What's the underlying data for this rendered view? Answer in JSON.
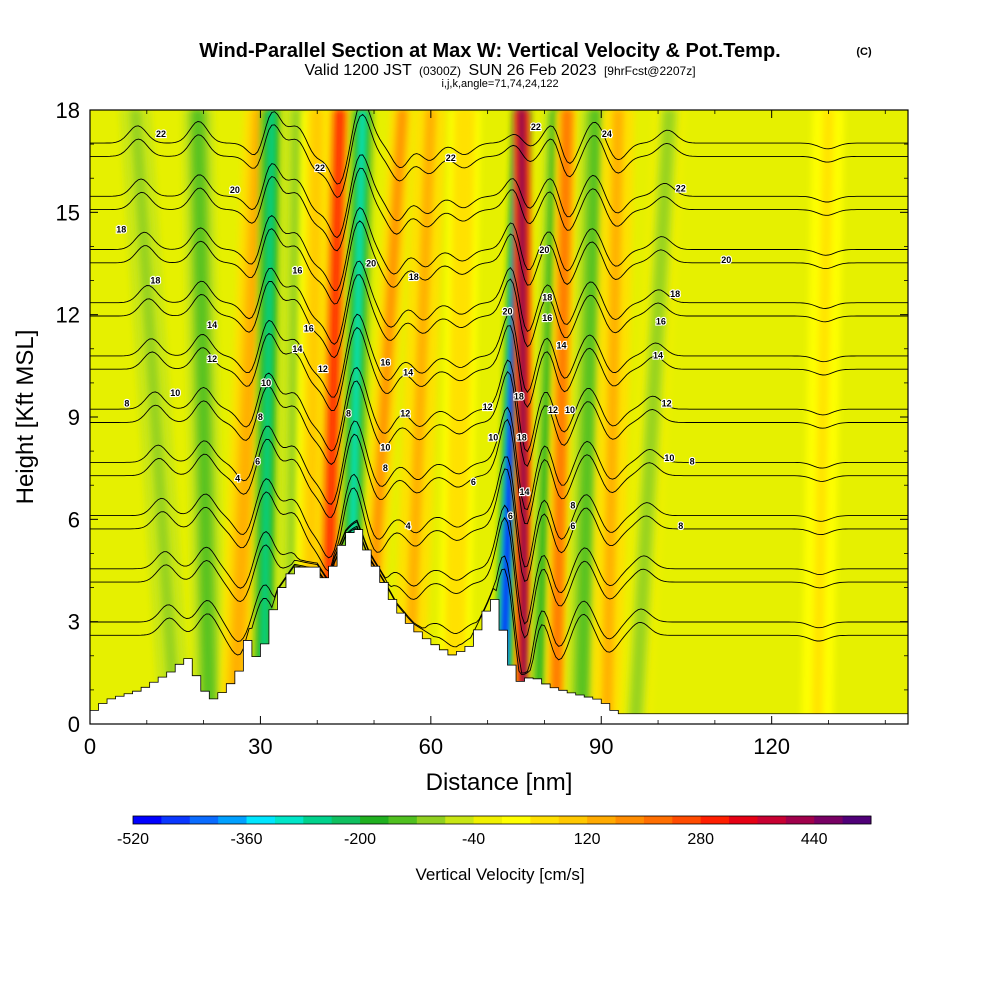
{
  "chart_data": {
    "type": "heatmap",
    "title": "Wind-Parallel Section at Max W: Vertical Velocity & Pot.Temp.",
    "title_mark": "(C)",
    "subtitle_parts": [
      "Valid 1200 JST",
      "(0300Z)",
      "SUN 26 Feb 2023",
      "[9hrFcst@2207z]"
    ],
    "subtitle2": "i,j,k,angle=71,74,24,122",
    "xlabel": "Distance [nm]",
    "ylabel": "Height [Kft MSL]",
    "xlim": [
      0,
      144
    ],
    "ylim": [
      0,
      18
    ],
    "x_ticks": [
      "0",
      "30",
      "60",
      "90",
      "120"
    ],
    "x_tick_values": [
      0,
      30,
      60,
      90,
      120
    ],
    "y_ticks": [
      "0",
      "3",
      "6",
      "9",
      "12",
      "15",
      "18"
    ],
    "y_tick_values": [
      0,
      3,
      6,
      9,
      12,
      15,
      18
    ],
    "colorbar": {
      "title": "Vertical Velocity [cm/s]",
      "min": -520,
      "max": 520,
      "labels": [
        "-520",
        "-360",
        "-200",
        "-40",
        "120",
        "280",
        "440"
      ],
      "label_values": [
        -520,
        -360,
        -200,
        -40,
        120,
        280,
        440
      ],
      "colors": [
        "#0000ff",
        "#0a37ff",
        "#0a6bff",
        "#00a0ff",
        "#00e6ff",
        "#00e6c8",
        "#00d28c",
        "#10c060",
        "#20b020",
        "#50c020",
        "#90d020",
        "#c8e614",
        "#f0f000",
        "#ffff00",
        "#ffe000",
        "#ffc800",
        "#ffaa00",
        "#ff8c00",
        "#ff6e00",
        "#ff4b00",
        "#ff1e00",
        "#e60014",
        "#c80032",
        "#a0004b",
        "#780064",
        "#500078"
      ]
    },
    "terrain": [
      [
        0,
        0.3
      ],
      [
        3,
        0.7
      ],
      [
        9,
        1.0
      ],
      [
        15,
        1.6
      ],
      [
        17,
        2.0
      ],
      [
        20,
        1.0
      ],
      [
        22,
        0.7
      ],
      [
        26,
        1.4
      ],
      [
        28,
        2.6
      ],
      [
        30,
        1.6
      ],
      [
        31,
        2.6
      ],
      [
        33,
        3.8
      ],
      [
        36,
        4.6
      ],
      [
        40,
        4.6
      ],
      [
        42,
        4.1
      ],
      [
        43,
        4.8
      ],
      [
        45,
        5.5
      ],
      [
        47,
        5.8
      ],
      [
        49,
        5.0
      ],
      [
        51,
        4.4
      ],
      [
        54,
        3.4
      ],
      [
        57,
        2.8
      ],
      [
        60,
        2.4
      ],
      [
        64,
        2.0
      ],
      [
        67,
        2.3
      ],
      [
        70,
        3.4
      ],
      [
        71,
        3.8
      ],
      [
        73,
        2.6
      ],
      [
        75,
        1.2
      ],
      [
        78,
        1.4
      ],
      [
        81,
        1.1
      ],
      [
        85,
        0.9
      ],
      [
        90,
        0.7
      ],
      [
        93,
        0.3
      ],
      [
        144,
        0.3
      ]
    ],
    "w_bands": [
      {
        "x0": 15.0,
        "x1": 8.0,
        "w": -120
      },
      {
        "x0": 21.0,
        "x1": 19.0,
        "w": -150
      },
      {
        "x0": 25.5,
        "x1": 30.0,
        "w": 140
      },
      {
        "x0": 30.5,
        "x1": 32.0,
        "w": -260
      },
      {
        "x0": 35.5,
        "x1": 36.5,
        "w": -120
      },
      {
        "x0": 38.5,
        "x1": 40.0,
        "w": 100
      },
      {
        "x0": 41.5,
        "x1": 44.0,
        "w": 290
      },
      {
        "x0": 45.5,
        "x1": 48.0,
        "w": -300
      },
      {
        "x0": 48.5,
        "x1": 55.0,
        "w": 170
      },
      {
        "x0": 56.0,
        "x1": 60.0,
        "w": 120
      },
      {
        "x0": 64.0,
        "x1": 66.0,
        "w": 80
      },
      {
        "x0": 72.5,
        "x1": 76.0,
        "w": -500
      },
      {
        "x0": 76.5,
        "x1": 76.0,
        "w": 470
      },
      {
        "x0": 79.0,
        "x1": 82.0,
        "w": -180
      },
      {
        "x0": 82.0,
        "x1": 84.0,
        "w": 200
      },
      {
        "x0": 86.5,
        "x1": 89.0,
        "w": -150
      },
      {
        "x0": 91.0,
        "x1": 93.0,
        "w": 120
      },
      {
        "x0": 96.0,
        "x1": 102.0,
        "w": -90
      },
      {
        "x0": 128.0,
        "x1": 130.0,
        "w": 40
      }
    ],
    "contour_levels": [
      4,
      6,
      8,
      10,
      12,
      14,
      16,
      18,
      20,
      22
    ],
    "contour_labels": [
      {
        "text": "22",
        "x": 12.5,
        "y": 17.3
      },
      {
        "text": "20",
        "x": 25.5,
        "y": 15.65
      },
      {
        "text": "18",
        "x": 5.5,
        "y": 14.5
      },
      {
        "text": "18",
        "x": 11.5,
        "y": 13.0
      },
      {
        "text": "14",
        "x": 21.5,
        "y": 11.7
      },
      {
        "text": "12",
        "x": 21.5,
        "y": 10.7
      },
      {
        "text": "10",
        "x": 15.0,
        "y": 9.7
      },
      {
        "text": "8",
        "x": 6.5,
        "y": 9.4
      },
      {
        "text": "4",
        "x": 26.0,
        "y": 7.2
      },
      {
        "text": "6",
        "x": 29.5,
        "y": 7.7
      },
      {
        "text": "8",
        "x": 30.0,
        "y": 9.0
      },
      {
        "text": "10",
        "x": 31.0,
        "y": 10.0
      },
      {
        "text": "14",
        "x": 36.5,
        "y": 11.0
      },
      {
        "text": "16",
        "x": 36.5,
        "y": 13.3
      },
      {
        "text": "16",
        "x": 38.5,
        "y": 11.6
      },
      {
        "text": "12",
        "x": 41.0,
        "y": 10.4
      },
      {
        "text": "22",
        "x": 40.5,
        "y": 16.3
      },
      {
        "text": "20",
        "x": 49.5,
        "y": 13.5
      },
      {
        "text": "8",
        "x": 45.5,
        "y": 9.1
      },
      {
        "text": "16",
        "x": 52.0,
        "y": 10.6
      },
      {
        "text": "10",
        "x": 52.0,
        "y": 8.1
      },
      {
        "text": "8",
        "x": 52.0,
        "y": 7.5
      },
      {
        "text": "14",
        "x": 56.0,
        "y": 10.3
      },
      {
        "text": "12",
        "x": 55.5,
        "y": 9.1
      },
      {
        "text": "18",
        "x": 57.0,
        "y": 13.1
      },
      {
        "text": "4",
        "x": 56.0,
        "y": 5.8
      },
      {
        "text": "22",
        "x": 63.5,
        "y": 16.6
      },
      {
        "text": "6",
        "x": 67.5,
        "y": 7.1
      },
      {
        "text": "12",
        "x": 70.0,
        "y": 9.3
      },
      {
        "text": "10",
        "x": 71.0,
        "y": 8.4
      },
      {
        "text": "20",
        "x": 73.5,
        "y": 12.1
      },
      {
        "text": "18",
        "x": 75.5,
        "y": 9.6
      },
      {
        "text": "18",
        "x": 76.0,
        "y": 8.4
      },
      {
        "text": "14",
        "x": 76.5,
        "y": 6.8
      },
      {
        "text": "6",
        "x": 74.0,
        "y": 6.1
      },
      {
        "text": "22",
        "x": 78.5,
        "y": 17.5
      },
      {
        "text": "20",
        "x": 80.0,
        "y": 13.9
      },
      {
        "text": "18",
        "x": 80.5,
        "y": 12.5
      },
      {
        "text": "16",
        "x": 80.5,
        "y": 11.9
      },
      {
        "text": "14",
        "x": 83.0,
        "y": 11.1
      },
      {
        "text": "12",
        "x": 81.5,
        "y": 9.2
      },
      {
        "text": "10",
        "x": 84.5,
        "y": 9.2
      },
      {
        "text": "8",
        "x": 85.0,
        "y": 6.4
      },
      {
        "text": "6",
        "x": 85.0,
        "y": 5.8
      },
      {
        "text": "24",
        "x": 91.0,
        "y": 17.3
      },
      {
        "text": "22",
        "x": 104.0,
        "y": 15.7
      },
      {
        "text": "20",
        "x": 112.0,
        "y": 13.6
      },
      {
        "text": "18",
        "x": 103.0,
        "y": 12.6
      },
      {
        "text": "16",
        "x": 100.5,
        "y": 11.8
      },
      {
        "text": "14",
        "x": 100.0,
        "y": 10.8
      },
      {
        "text": "12",
        "x": 101.5,
        "y": 9.4
      },
      {
        "text": "10",
        "x": 102.0,
        "y": 7.8
      },
      {
        "text": "8",
        "x": 106.0,
        "y": 7.7
      },
      {
        "text": "8",
        "x": 104.0,
        "y": 5.8
      }
    ]
  }
}
